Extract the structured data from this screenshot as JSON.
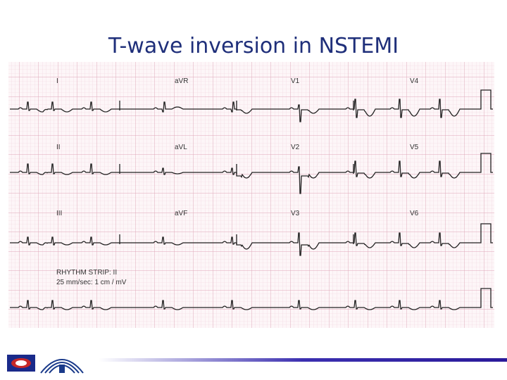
{
  "title": "T-wave inversion in NSTEMI",
  "leads": [
    [
      "I",
      "aVR",
      "V1",
      "V4"
    ],
    [
      "II",
      "aVL",
      "V2",
      "V5"
    ],
    [
      "III",
      "aVF",
      "V3",
      "V6"
    ]
  ],
  "rhythm_strip": {
    "label": "RHYTHM STRIP:  II",
    "settings": "25 mm/sec: 1 cm / mV"
  }
}
